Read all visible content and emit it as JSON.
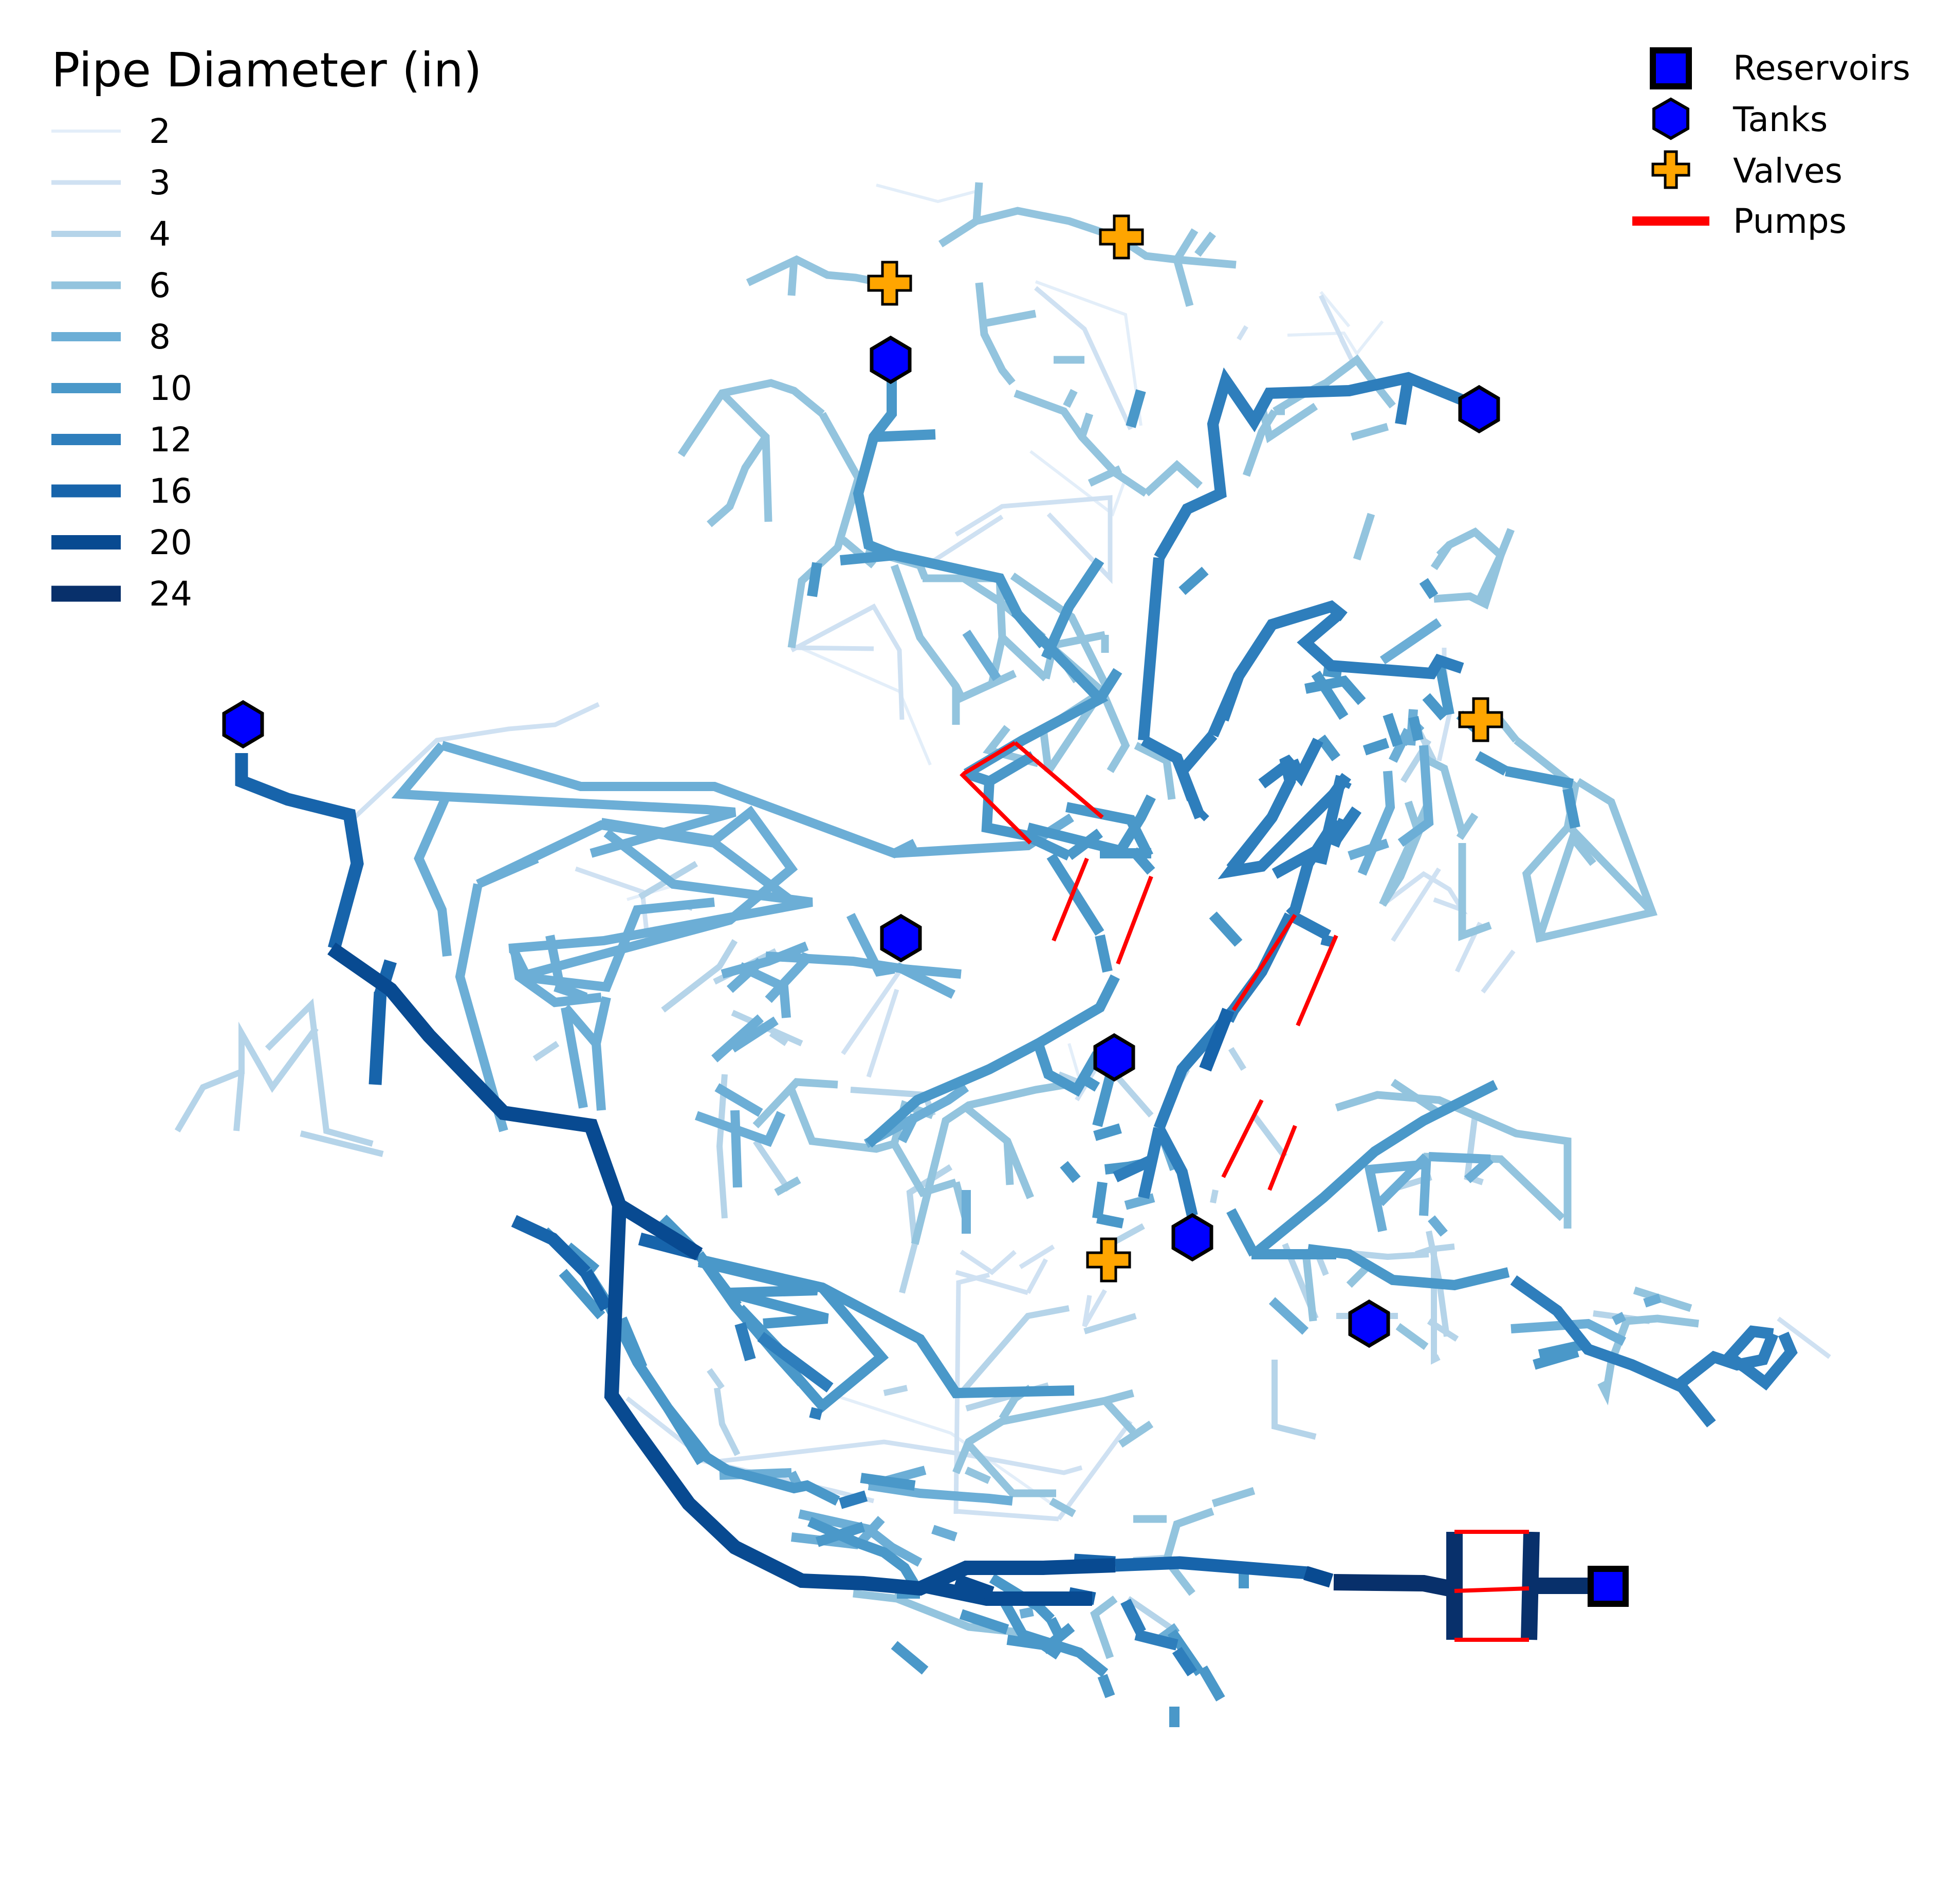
{
  "diameter_legend": {
    "title": "Pipe Diameter (in)",
    "items": [
      {
        "label": "2",
        "color": "#e3eef9"
      },
      {
        "label": "3",
        "color": "#cfe1f2"
      },
      {
        "label": "4",
        "color": "#b5d4e9"
      },
      {
        "label": "6",
        "color": "#93c4de"
      },
      {
        "label": "8",
        "color": "#6caed6"
      },
      {
        "label": "10",
        "color": "#4a98c9"
      },
      {
        "label": "12",
        "color": "#2e7ebc"
      },
      {
        "label": "16",
        "color": "#1764ab"
      },
      {
        "label": "20",
        "color": "#084a91"
      },
      {
        "label": "24",
        "color": "#08306b"
      }
    ]
  },
  "element_legend": {
    "reservoirs": {
      "label": "Reservoirs",
      "color": "#0000ff",
      "icon": "square-icon"
    },
    "tanks": {
      "label": "Tanks",
      "color": "#0000ff",
      "icon": "hexagon-icon"
    },
    "valves": {
      "label": "Valves",
      "color": "#ffa500",
      "icon": "plus-icon"
    },
    "pumps": {
      "label": "Pumps",
      "color": "#ff0000",
      "icon": "line-icon"
    }
  }
}
